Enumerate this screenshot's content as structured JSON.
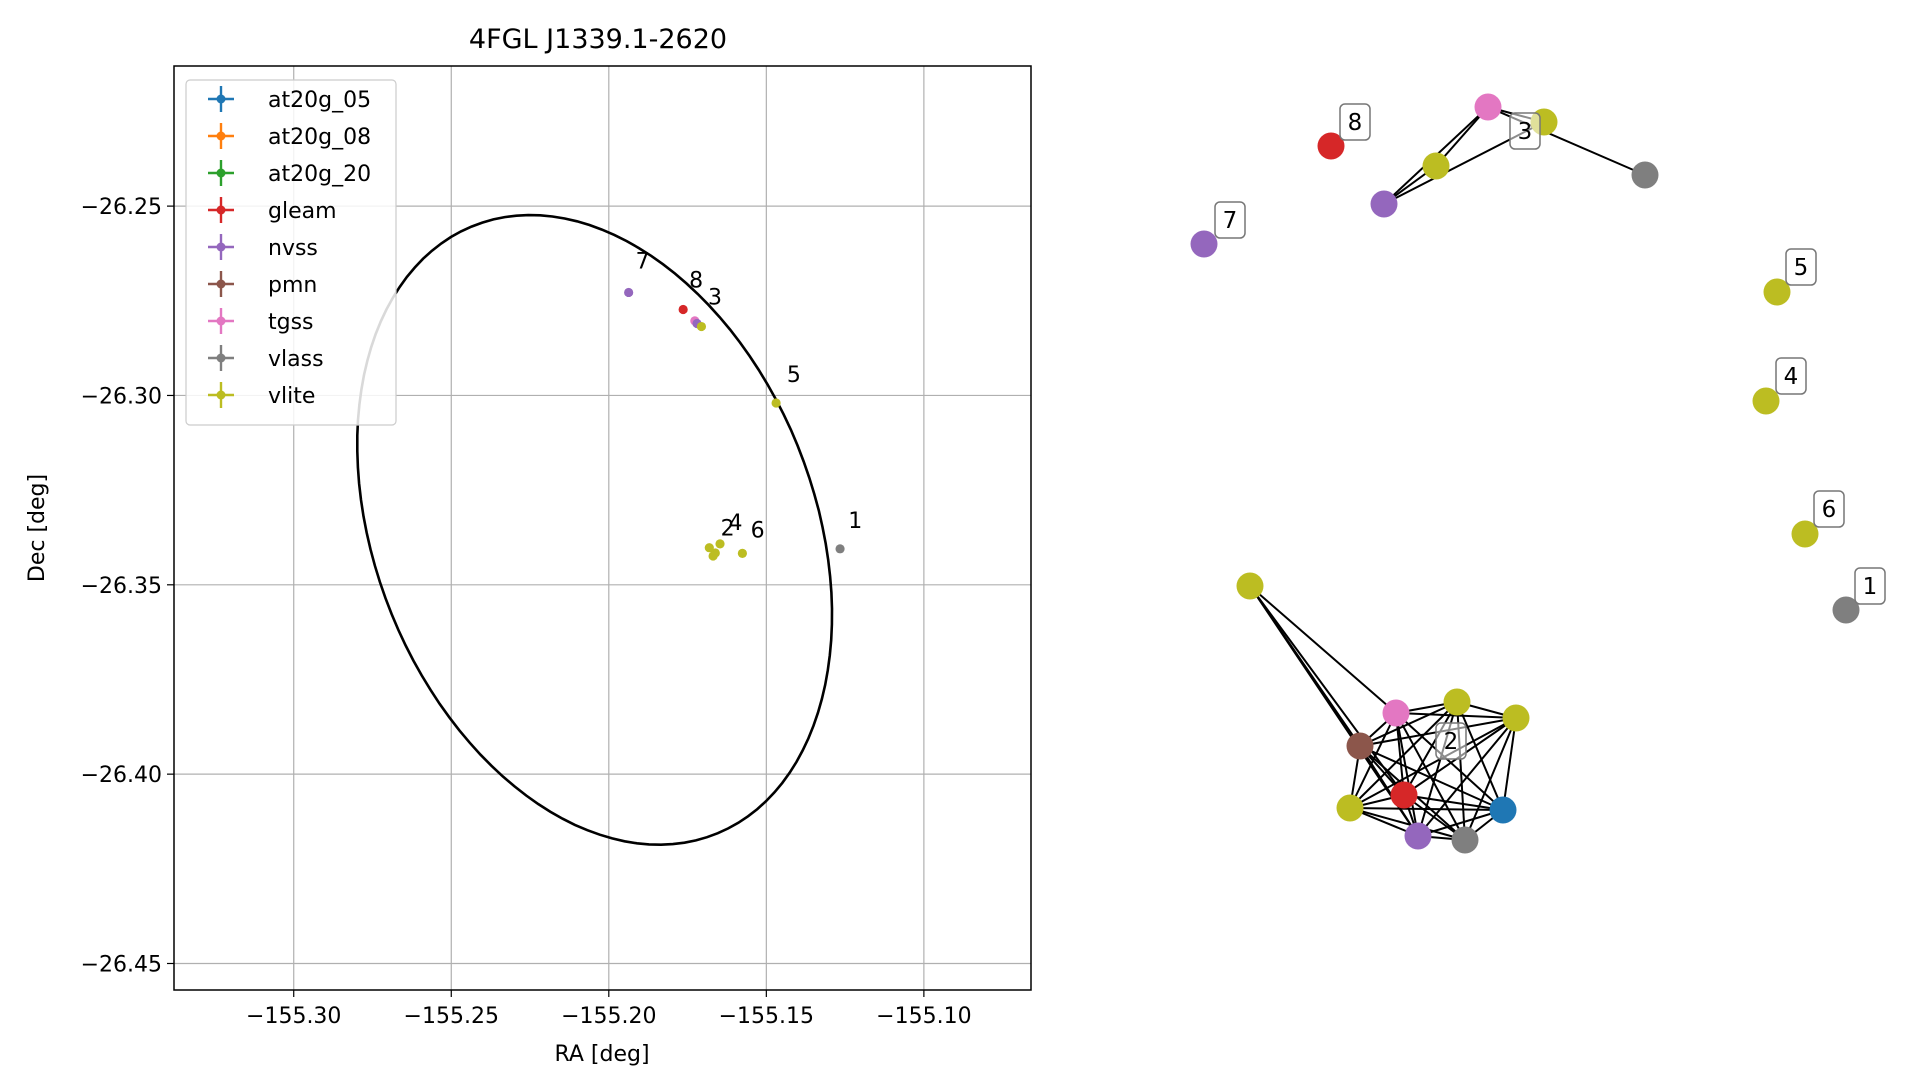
{
  "chart_data": [
    {
      "type": "scatter",
      "title": "4FGL J1339.1-2620",
      "xlabel": "RA [deg]",
      "ylabel": "Dec [deg]",
      "xlim": [
        -155.338,
        -155.066
      ],
      "ylim": [
        -26.457,
        -26.213
      ],
      "xticks": [
        -155.3,
        -155.25,
        -155.2,
        -155.15,
        -155.1
      ],
      "xtick_labels": [
        "−155.30",
        "−155.25",
        "−155.20",
        "−155.15",
        "−155.10"
      ],
      "yticks": [
        -26.25,
        -26.3,
        -26.35,
        -26.4,
        -26.45
      ],
      "ytick_labels": [
        "−26.25",
        "−26.30",
        "−26.35",
        "−26.40",
        "−26.45"
      ],
      "grid": true,
      "legend_position": "top-left",
      "legend": [
        {
          "name": "at20g_05",
          "color": "#1f77b4"
        },
        {
          "name": "at20g_08",
          "color": "#ff7f0e"
        },
        {
          "name": "at20g_20",
          "color": "#2ca02c"
        },
        {
          "name": "gleam",
          "color": "#d62728"
        },
        {
          "name": "nvss",
          "color": "#9467bd"
        },
        {
          "name": "pmn",
          "color": "#8c564b"
        },
        {
          "name": "tgss",
          "color": "#e377c2"
        },
        {
          "name": "vlass",
          "color": "#7f7f7f"
        },
        {
          "name": "vlite",
          "color": "#bcbd22"
        }
      ],
      "ellipse": {
        "center_ra": -155.2045,
        "center_dec": -26.3355,
        "semi_a": 0.09,
        "semi_b": 0.067,
        "angle_deg": 125
      },
      "points": [
        {
          "ra": -155.1937,
          "dec": -26.2728,
          "color": "#9467bd"
        },
        {
          "ra": -155.1764,
          "dec": -26.2773,
          "color": "#d62728"
        },
        {
          "ra": -155.1727,
          "dec": -26.2803,
          "color": "#e377c2"
        },
        {
          "ra": -155.172,
          "dec": -26.281,
          "color": "#9467bd"
        },
        {
          "ra": -155.1706,
          "dec": -26.2818,
          "color": "#bcbd22"
        },
        {
          "ra": -155.1469,
          "dec": -26.302,
          "color": "#bcbd22"
        },
        {
          "ra": -155.1647,
          "dec": -26.3392,
          "color": "#bcbd22"
        },
        {
          "ra": -155.1681,
          "dec": -26.3402,
          "color": "#bcbd22"
        },
        {
          "ra": -155.1662,
          "dec": -26.3416,
          "color": "#bcbd22"
        },
        {
          "ra": -155.1669,
          "dec": -26.3424,
          "color": "#bcbd22"
        },
        {
          "ra": -155.1576,
          "dec": -26.3417,
          "color": "#bcbd22"
        },
        {
          "ra": -155.1266,
          "dec": -26.3405,
          "color": "#7f7f7f"
        }
      ],
      "point_labels": [
        {
          "text": "7",
          "ra": -155.1915,
          "dec": -26.2665
        },
        {
          "text": "8",
          "ra": -155.1745,
          "dec": -26.2715
        },
        {
          "text": "3",
          "ra": -155.1685,
          "dec": -26.276
        },
        {
          "text": "5",
          "ra": -155.1435,
          "dec": -26.2965
        },
        {
          "text": "4",
          "ra": -155.162,
          "dec": -26.3355
        },
        {
          "text": "2",
          "ra": -155.1645,
          "dec": -26.337
        },
        {
          "text": "6",
          "ra": -155.155,
          "dec": -26.3375
        },
        {
          "text": "1",
          "ra": -155.124,
          "dec": -26.335
        }
      ]
    },
    {
      "type": "network-graph",
      "nodes": [
        {
          "id": "n1",
          "color": "#bcbd22",
          "label": ""
        },
        {
          "id": "n2",
          "color": "#e377c2",
          "label": ""
        },
        {
          "id": "n3",
          "color": "#bcbd22",
          "label": ""
        },
        {
          "id": "n4",
          "color": "#bcbd22",
          "label": ""
        },
        {
          "id": "n5",
          "color": "#8c564b",
          "label": ""
        },
        {
          "id": "n6",
          "color": "#d62728",
          "label": ""
        },
        {
          "id": "n7",
          "color": "#1f77b4",
          "label": ""
        },
        {
          "id": "n8",
          "color": "#bcbd22",
          "label": ""
        },
        {
          "id": "n9",
          "color": "#9467bd",
          "label": ""
        },
        {
          "id": "n10",
          "color": "#7f7f7f",
          "label": ""
        },
        {
          "id": "n11",
          "color": "#e377c2",
          "label": ""
        },
        {
          "id": "n12",
          "color": "#bcbd22",
          "label": ""
        },
        {
          "id": "n13",
          "color": "#bcbd22",
          "label": ""
        },
        {
          "id": "n14",
          "color": "#9467bd",
          "label": ""
        },
        {
          "id": "n15",
          "color": "#7f7f7f",
          "label": ""
        },
        {
          "id": "n16",
          "color": "#d62728",
          "label": "8"
        },
        {
          "id": "n17",
          "color": "#9467bd",
          "label": "7"
        },
        {
          "id": "n18",
          "color": "#bcbd22",
          "label": "5"
        },
        {
          "id": "n19",
          "color": "#bcbd22",
          "label": "4"
        },
        {
          "id": "n20",
          "color": "#bcbd22",
          "label": "6"
        },
        {
          "id": "n21",
          "color": "#7f7f7f",
          "label": "1"
        }
      ],
      "edges": [
        [
          "n1",
          "n5"
        ],
        [
          "n1",
          "n2"
        ],
        [
          "n1",
          "n6"
        ],
        [
          "n1",
          "n9"
        ],
        [
          "n2",
          "n3"
        ],
        [
          "n2",
          "n4"
        ],
        [
          "n2",
          "n5"
        ],
        [
          "n2",
          "n6"
        ],
        [
          "n2",
          "n7"
        ],
        [
          "n2",
          "n8"
        ],
        [
          "n2",
          "n9"
        ],
        [
          "n2",
          "n10"
        ],
        [
          "n3",
          "n4"
        ],
        [
          "n3",
          "n5"
        ],
        [
          "n3",
          "n6"
        ],
        [
          "n3",
          "n7"
        ],
        [
          "n3",
          "n8"
        ],
        [
          "n3",
          "n9"
        ],
        [
          "n3",
          "n10"
        ],
        [
          "n4",
          "n5"
        ],
        [
          "n4",
          "n6"
        ],
        [
          "n4",
          "n7"
        ],
        [
          "n4",
          "n8"
        ],
        [
          "n4",
          "n9"
        ],
        [
          "n4",
          "n10"
        ],
        [
          "n5",
          "n6"
        ],
        [
          "n5",
          "n7"
        ],
        [
          "n5",
          "n8"
        ],
        [
          "n5",
          "n9"
        ],
        [
          "n5",
          "n10"
        ],
        [
          "n6",
          "n7"
        ],
        [
          "n6",
          "n8"
        ],
        [
          "n6",
          "n9"
        ],
        [
          "n6",
          "n10"
        ],
        [
          "n7",
          "n8"
        ],
        [
          "n7",
          "n9"
        ],
        [
          "n7",
          "n10"
        ],
        [
          "n8",
          "n9"
        ],
        [
          "n8",
          "n10"
        ],
        [
          "n9",
          "n10"
        ],
        [
          "n11",
          "n12"
        ],
        [
          "n11",
          "n13"
        ],
        [
          "n11",
          "n14"
        ],
        [
          "n11",
          "n15"
        ],
        [
          "n12",
          "n14"
        ],
        [
          "n13",
          "n14"
        ]
      ],
      "cluster_labels": [
        "2",
        "3"
      ]
    }
  ]
}
